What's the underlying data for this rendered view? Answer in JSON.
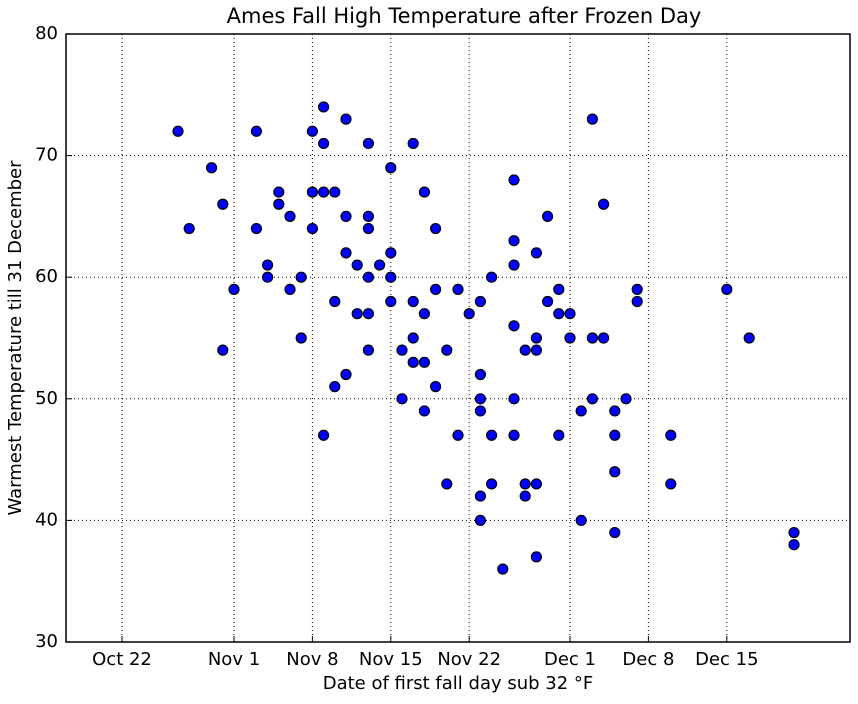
{
  "chart_data": {
    "type": "scatter",
    "title": "Ames Fall High Temperature after Frozen Day",
    "x_label": "Date of first fall day sub 32 °F",
    "y_label": "Warmest Temperature till 31 December",
    "x": [
      "Oct 27",
      "Oct 28",
      "Oct 30",
      "Oct 31",
      "Oct 31",
      "Nov 1",
      "Nov 3",
      "Nov 3",
      "Nov 4",
      "Nov 4",
      "Nov 5",
      "Nov 5",
      "Nov 6",
      "Nov 6",
      "Nov 7",
      "Nov 7",
      "Nov 8",
      "Nov 8",
      "Nov 8",
      "Nov 9",
      "Nov 9",
      "Nov 9",
      "Nov 9",
      "Nov 10",
      "Nov 10",
      "Nov 10",
      "Nov 11",
      "Nov 11",
      "Nov 11",
      "Nov 11",
      "Nov 12",
      "Nov 12",
      "Nov 13",
      "Nov 13",
      "Nov 13",
      "Nov 13",
      "Nov 13",
      "Nov 13",
      "Nov 14",
      "Nov 15",
      "Nov 15",
      "Nov 15",
      "Nov 15",
      "Nov 16",
      "Nov 16",
      "Nov 17",
      "Nov 17",
      "Nov 17",
      "Nov 17",
      "Nov 18",
      "Nov 18",
      "Nov 18",
      "Nov 18",
      "Nov 19",
      "Nov 19",
      "Nov 19",
      "Nov 20",
      "Nov 20",
      "Nov 21",
      "Nov 21",
      "Nov 22",
      "Nov 23",
      "Nov 23",
      "Nov 23",
      "Nov 23",
      "Nov 23",
      "Nov 23",
      "Nov 24",
      "Nov 24",
      "Nov 24",
      "Nov 25",
      "Nov 26",
      "Nov 26",
      "Nov 26",
      "Nov 26",
      "Nov 26",
      "Nov 26",
      "Nov 27",
      "Nov 27",
      "Nov 27",
      "Nov 28",
      "Nov 28",
      "Nov 28",
      "Nov 28",
      "Nov 28",
      "Nov 29",
      "Nov 29",
      "Nov 30",
      "Nov 30",
      "Nov 30",
      "Dec 1",
      "Dec 1",
      "Dec 2",
      "Dec 2",
      "Dec 3",
      "Dec 3",
      "Dec 3",
      "Dec 4",
      "Dec 4",
      "Dec 5",
      "Dec 5",
      "Dec 5",
      "Dec 5",
      "Dec 6",
      "Dec 7",
      "Dec 7",
      "Dec 10",
      "Dec 10",
      "Dec 15",
      "Dec 17",
      "Dec 21",
      "Dec 21"
    ],
    "values": [
      72,
      64,
      69,
      66,
      54,
      59,
      72,
      64,
      61,
      60,
      67,
      66,
      65,
      59,
      60,
      55,
      72,
      67,
      64,
      74,
      71,
      67,
      47,
      67,
      58,
      51,
      73,
      65,
      62,
      52,
      61,
      57,
      71,
      65,
      64,
      60,
      57,
      54,
      61,
      69,
      62,
      60,
      58,
      54,
      50,
      71,
      58,
      55,
      53,
      67,
      57,
      53,
      49,
      64,
      59,
      51,
      54,
      43,
      59,
      47,
      57,
      58,
      52,
      50,
      49,
      42,
      40,
      60,
      47,
      43,
      36,
      68,
      63,
      61,
      56,
      50,
      47,
      54,
      43,
      42,
      62,
      55,
      54,
      43,
      37,
      65,
      58,
      59,
      57,
      47,
      57,
      55,
      49,
      40,
      73,
      55,
      50,
      66,
      55,
      49,
      47,
      44,
      39,
      50,
      59,
      58,
      47,
      43,
      59,
      55,
      39,
      38
    ],
    "color": "#0000ff",
    "xlim": [
      "Oct 17",
      "Dec 26"
    ],
    "xticks": [
      "Oct 22",
      "Nov 1",
      "Nov 8",
      "Nov 15",
      "Nov 22",
      "Dec 1",
      "Dec 8",
      "Dec 15"
    ],
    "ylim": [
      30,
      80
    ],
    "yticks": [
      30,
      40,
      50,
      60,
      70,
      80
    ],
    "grid": true
  }
}
